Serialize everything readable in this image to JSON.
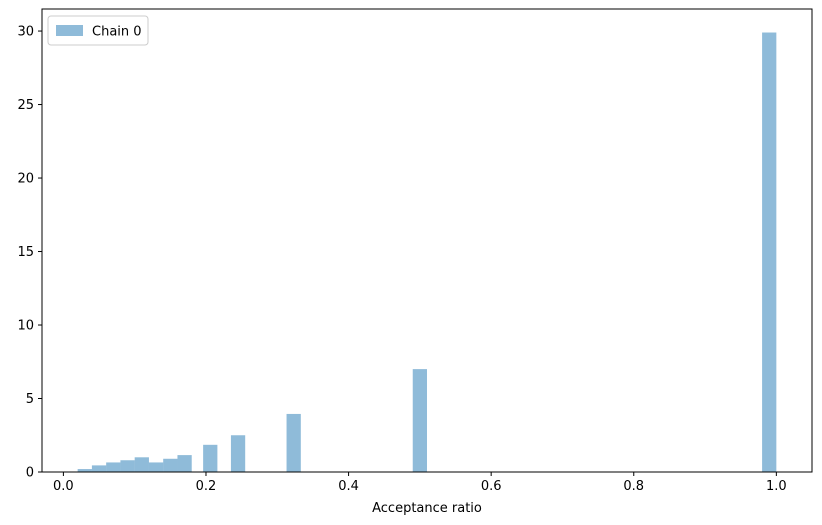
{
  "chart_data": {
    "type": "bar",
    "subtype": "histogram",
    "xlabel": "Acceptance ratio",
    "ylabel": "",
    "xlim": [
      -0.03,
      1.05
    ],
    "ylim": [
      0,
      31.5
    ],
    "bin_width": 0.02,
    "xticks": [
      0.0,
      0.2,
      0.4,
      0.6,
      0.8,
      1.0
    ],
    "xtick_labels": [
      "0.0",
      "0.2",
      "0.4",
      "0.6",
      "0.8",
      "1.0"
    ],
    "yticks": [
      0,
      5,
      10,
      15,
      20,
      25,
      30
    ],
    "ytick_labels": [
      "0",
      "5",
      "10",
      "15",
      "20",
      "25",
      "30"
    ],
    "grid": false,
    "legend_position": "top-left",
    "series": [
      {
        "name": "Chain 0",
        "color": "#1f77b4",
        "opacity": 0.5,
        "bins": [
          {
            "x0": 0.02,
            "x1": 0.04,
            "value": 0.2
          },
          {
            "x0": 0.04,
            "x1": 0.06,
            "value": 0.45
          },
          {
            "x0": 0.06,
            "x1": 0.08,
            "value": 0.65
          },
          {
            "x0": 0.08,
            "x1": 0.1,
            "value": 0.8
          },
          {
            "x0": 0.1,
            "x1": 0.12,
            "value": 1.0
          },
          {
            "x0": 0.12,
            "x1": 0.14,
            "value": 0.65
          },
          {
            "x0": 0.14,
            "x1": 0.16,
            "value": 0.9
          },
          {
            "x0": 0.16,
            "x1": 0.18,
            "value": 1.15
          },
          {
            "x0": 0.196,
            "x1": 0.216,
            "value": 1.85
          },
          {
            "x0": 0.235,
            "x1": 0.255,
            "value": 2.5
          },
          {
            "x0": 0.313,
            "x1": 0.333,
            "value": 3.95
          },
          {
            "x0": 0.49,
            "x1": 0.51,
            "value": 7.0
          },
          {
            "x0": 0.98,
            "x1": 1.0,
            "value": 29.9
          }
        ]
      }
    ]
  }
}
